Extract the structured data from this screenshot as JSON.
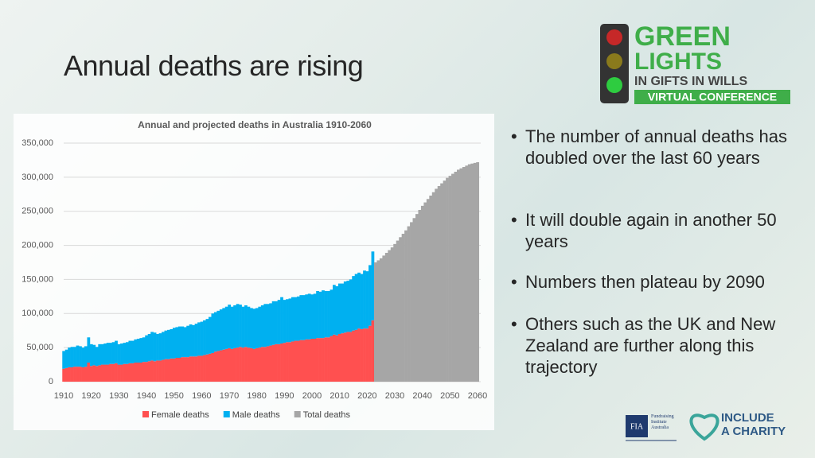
{
  "title": "Annual deaths are rising",
  "bullets": [
    "The number of annual deaths has doubled over the last 60 years",
    "It will double again in another 50 years",
    "Numbers then plateau by 2090",
    "Others such as the UK and New Zealand are further along this trajectory"
  ],
  "logo": {
    "line1": "GREEN",
    "line2": "LIGHTS",
    "line3": "IN GIFTS IN WILLS",
    "line4": "VIRTUAL CONFERENCE"
  },
  "footer_logos": {
    "fia": "FIA",
    "fia_name": "Fundraising Institute Australia",
    "include1": "INCLUDE",
    "include2": "A CHARITY"
  },
  "chart_data": {
    "type": "bar",
    "title": "Annual and projected deaths in Australia 1910-2060",
    "stacked": true,
    "x": [
      1910,
      1911,
      1912,
      1913,
      1914,
      1915,
      1916,
      1917,
      1918,
      1919,
      1920,
      1921,
      1922,
      1923,
      1924,
      1925,
      1926,
      1927,
      1928,
      1929,
      1930,
      1931,
      1932,
      1933,
      1934,
      1935,
      1936,
      1937,
      1938,
      1939,
      1940,
      1941,
      1942,
      1943,
      1944,
      1945,
      1946,
      1947,
      1948,
      1949,
      1950,
      1951,
      1952,
      1953,
      1954,
      1955,
      1956,
      1957,
      1958,
      1959,
      1960,
      1961,
      1962,
      1963,
      1964,
      1965,
      1966,
      1967,
      1968,
      1969,
      1970,
      1971,
      1972,
      1973,
      1974,
      1975,
      1976,
      1977,
      1978,
      1979,
      1980,
      1981,
      1982,
      1983,
      1984,
      1985,
      1986,
      1987,
      1988,
      1989,
      1990,
      1991,
      1992,
      1993,
      1994,
      1995,
      1996,
      1997,
      1998,
      1999,
      2000,
      2001,
      2002,
      2003,
      2004,
      2005,
      2006,
      2007,
      2008,
      2009,
      2010,
      2011,
      2012,
      2013,
      2014,
      2015,
      2016,
      2017,
      2018,
      2019,
      2020,
      2021,
      2022,
      2023,
      2024,
      2025,
      2026,
      2027,
      2028,
      2029,
      2030,
      2031,
      2032,
      2033,
      2034,
      2035,
      2036,
      2037,
      2038,
      2039,
      2040,
      2041,
      2042,
      2043,
      2044,
      2045,
      2046,
      2047,
      2048,
      2049,
      2050,
      2051,
      2052,
      2053,
      2054,
      2055,
      2056,
      2057,
      2058,
      2059,
      2060
    ],
    "xlim": [
      1910,
      2060
    ],
    "xticks": [
      1910,
      1920,
      1930,
      1940,
      1950,
      1960,
      1970,
      1980,
      1990,
      2000,
      2010,
      2020,
      2030,
      2040,
      2050,
      2060
    ],
    "ylim": [
      0,
      350000
    ],
    "yticks": [
      0,
      {
        "value": 50000,
        "label": "50,000"
      },
      {
        "value": 100000,
        "label": "100,000"
      },
      {
        "value": 150000,
        "label": "150,000"
      },
      {
        "value": 200000,
        "label": "200,000"
      },
      {
        "value": 250000,
        "label": "250,000"
      },
      {
        "value": 300000,
        "label": "300,000"
      },
      {
        "value": 350000,
        "label": "350,000"
      }
    ],
    "grid": true,
    "legend": "bottom",
    "series": [
      {
        "name": "Female deaths",
        "color": "#ff5050",
        "values": [
          19000,
          20000,
          21000,
          21000,
          22000,
          22000,
          22000,
          21000,
          22000,
          28000,
          23000,
          24000,
          23000,
          24000,
          25000,
          25000,
          25000,
          26000,
          26000,
          27000,
          25000,
          25000,
          26000,
          26000,
          27000,
          27000,
          28000,
          28000,
          28000,
          29000,
          29000,
          30000,
          31000,
          30000,
          31000,
          31000,
          32000,
          33000,
          33000,
          34000,
          34000,
          35000,
          35000,
          36000,
          36000,
          36000,
          37000,
          37000,
          37000,
          38000,
          38000,
          39000,
          40000,
          41000,
          42000,
          44000,
          45000,
          46000,
          47000,
          48000,
          49000,
          48000,
          49000,
          50000,
          51000,
          50000,
          51000,
          50000,
          49000,
          48000,
          49000,
          50000,
          51000,
          51000,
          52000,
          53000,
          54000,
          55000,
          55000,
          56000,
          57000,
          58000,
          58000,
          59000,
          60000,
          60000,
          61000,
          61000,
          62000,
          62000,
          63000,
          63000,
          64000,
          64000,
          64000,
          65000,
          65000,
          67000,
          69000,
          68000,
          70000,
          71000,
          72000,
          73000,
          73000,
          75000,
          76000,
          78000,
          77000,
          78000,
          78000,
          82000,
          90000,
          null,
          null,
          null,
          null,
          null,
          null,
          null,
          null,
          null,
          null,
          null,
          null,
          null,
          null,
          null,
          null,
          null,
          null,
          null,
          null,
          null,
          null,
          null,
          null,
          null,
          null,
          null,
          null,
          null,
          null,
          null,
          null,
          null,
          null,
          null,
          null,
          null,
          null
        ]
      },
      {
        "name": "Male deaths",
        "color": "#00b0f0",
        "values": [
          26000,
          27000,
          29000,
          30000,
          29000,
          31000,
          30000,
          29000,
          30000,
          37000,
          32000,
          30000,
          28000,
          31000,
          30000,
          31000,
          32000,
          31000,
          32000,
          33000,
          30000,
          31000,
          31000,
          32000,
          33000,
          33000,
          34000,
          35000,
          36000,
          36000,
          39000,
          40000,
          42000,
          42000,
          39000,
          40000,
          41000,
          42000,
          43000,
          43000,
          45000,
          45000,
          46000,
          45000,
          44000,
          46000,
          47000,
          46000,
          48000,
          49000,
          50000,
          51000,
          52000,
          54000,
          58000,
          58000,
          59000,
          60000,
          61000,
          62000,
          64000,
          62000,
          63000,
          64000,
          62000,
          60000,
          61000,
          60000,
          59000,
          59000,
          59000,
          60000,
          61000,
          63000,
          62000,
          62000,
          64000,
          63000,
          65000,
          68000,
          63000,
          63000,
          64000,
          65000,
          64000,
          65000,
          66000,
          66000,
          66000,
          67000,
          65000,
          66000,
          69000,
          68000,
          70000,
          68000,
          68000,
          68000,
          73000,
          72000,
          74000,
          73000,
          75000,
          75000,
          77000,
          80000,
          82000,
          82000,
          81000,
          85000,
          84000,
          89000,
          101000,
          null,
          null,
          null,
          null,
          null,
          null,
          null,
          null,
          null,
          null,
          null,
          null,
          null,
          null,
          null,
          null,
          null,
          null,
          null,
          null,
          null,
          null,
          null,
          null,
          null,
          null,
          null,
          null,
          null,
          null,
          null,
          null,
          null,
          null,
          null,
          null,
          null,
          null
        ]
      },
      {
        "name": "Total deaths",
        "color": "#a6a6a6",
        "values": [
          null,
          null,
          null,
          null,
          null,
          null,
          null,
          null,
          null,
          null,
          null,
          null,
          null,
          null,
          null,
          null,
          null,
          null,
          null,
          null,
          null,
          null,
          null,
          null,
          null,
          null,
          null,
          null,
          null,
          null,
          null,
          null,
          null,
          null,
          null,
          null,
          null,
          null,
          null,
          null,
          null,
          null,
          null,
          null,
          null,
          null,
          null,
          null,
          null,
          null,
          null,
          null,
          null,
          null,
          null,
          null,
          null,
          null,
          null,
          null,
          null,
          null,
          null,
          null,
          null,
          null,
          null,
          null,
          null,
          null,
          null,
          null,
          null,
          null,
          null,
          null,
          null,
          null,
          null,
          null,
          null,
          null,
          null,
          null,
          null,
          null,
          null,
          null,
          null,
          null,
          null,
          null,
          null,
          null,
          null,
          null,
          null,
          null,
          null,
          null,
          null,
          null,
          null,
          null,
          null,
          null,
          null,
          null,
          null,
          null,
          null,
          null,
          null,
          175000,
          178000,
          181000,
          185000,
          189000,
          193000,
          197000,
          202000,
          207000,
          212000,
          217000,
          222000,
          228000,
          234000,
          240000,
          246000,
          252000,
          258000,
          263000,
          268000,
          273000,
          278000,
          283000,
          287000,
          291000,
          295000,
          299000,
          302000,
          305000,
          308000,
          311000,
          313000,
          315000,
          317000,
          319000,
          320000,
          321000,
          322000
        ],
        "stack": "total"
      }
    ]
  }
}
